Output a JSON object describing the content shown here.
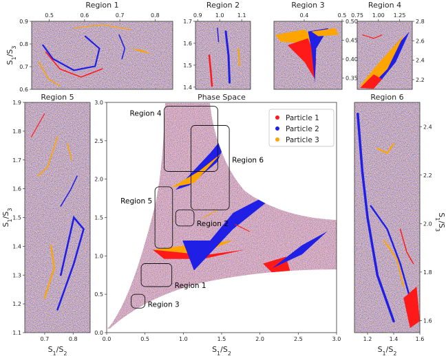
{
  "colors": {
    "particle1": "#ff1a1a",
    "particle2": "#1f1fe6",
    "particle3": "#ffa500",
    "noise_mix": "#b05a9a"
  },
  "chart_data": [
    {
      "id": "region1",
      "type": "scatter",
      "title": "Region 1",
      "xticks_top": [
        "0.5",
        "0.6",
        "0.7",
        "0.8"
      ],
      "xticks_values": [
        0.5,
        0.6,
        0.7,
        0.8
      ],
      "xlim": [
        0.45,
        0.85
      ],
      "ylim": [
        0.6,
        0.9
      ],
      "yticks": [
        "0.6",
        "0.7",
        "0.8",
        "0.9"
      ],
      "yticks_values": [
        0.6,
        0.7,
        0.8,
        0.9
      ],
      "ylabel": "S1/S3"
    },
    {
      "id": "region2",
      "type": "scatter",
      "title": "Region 2",
      "xticks_top": [
        "0.9",
        "1.0",
        "1.1"
      ],
      "xticks_values": [
        0.9,
        1.0,
        1.1
      ],
      "xlim": [
        0.89,
        1.14
      ],
      "ylim": [
        1.39,
        1.7
      ],
      "yticks": [
        "1.4",
        "1.5",
        "1.6",
        "1.7"
      ],
      "yticks_values": [
        1.4,
        1.5,
        1.6,
        1.7
      ]
    },
    {
      "id": "region3",
      "type": "scatter",
      "title": "Region 3",
      "xticks_top": [
        "0.4",
        "0.5"
      ],
      "xticks_values": [
        0.4,
        0.5
      ],
      "xlim": [
        0.32,
        0.5
      ],
      "ylim": [
        0.32,
        0.5
      ],
      "yticks_right": [
        "0.35",
        "0.40",
        "0.45",
        "0.50"
      ],
      "yticks_values": [
        0.35,
        0.4,
        0.45,
        0.5
      ]
    },
    {
      "id": "region4",
      "type": "scatter",
      "title": "Region 4",
      "xticks_top": [
        "0.75",
        "1.00",
        "1.25"
      ],
      "xticks_values": [
        0.75,
        1.0,
        1.25
      ],
      "xlim": [
        0.75,
        1.4
      ],
      "ylim": [
        2.1,
        2.8
      ],
      "yticks_right": [
        "2.2",
        "2.4",
        "2.6",
        "2.8"
      ],
      "yticks_values": [
        2.2,
        2.4,
        2.6,
        2.8
      ]
    },
    {
      "id": "region5",
      "type": "scatter",
      "title": "Region 5",
      "xlim": [
        0.63,
        0.86
      ],
      "ylim": [
        1.1,
        1.9
      ],
      "xticks": [
        "0.7",
        "0.8"
      ],
      "xticks_values": [
        0.7,
        0.8
      ],
      "yticks": [
        "1.1",
        "1.2",
        "1.3",
        "1.4",
        "1.5",
        "1.6",
        "1.7",
        "1.8",
        "1.9"
      ],
      "yticks_values": [
        1.1,
        1.2,
        1.3,
        1.4,
        1.5,
        1.6,
        1.7,
        1.8,
        1.9
      ],
      "xlabel": "S1/S2",
      "ylabel": "S1/S3"
    },
    {
      "id": "phase",
      "type": "scatter",
      "title": "Phase Space",
      "xlim": [
        0.0,
        3.0
      ],
      "ylim": [
        0.0,
        3.0
      ],
      "xticks": [
        "0.0",
        "0.5",
        "1.0",
        "1.5",
        "2.0",
        "2.5",
        "3.0"
      ],
      "xticks_values": [
        0.0,
        0.5,
        1.0,
        1.5,
        2.0,
        2.5,
        3.0
      ],
      "yticks": [
        "0.0",
        "0.5",
        "1.0",
        "1.5",
        "2.0",
        "2.5",
        "3.0"
      ],
      "yticks_values": [
        0.0,
        0.5,
        1.0,
        1.5,
        2.0,
        2.5,
        3.0
      ],
      "xlabel": "S1/S2",
      "legend": {
        "placement": "top-right",
        "entries": [
          {
            "name": "Particle 1",
            "color": "#ff1a1a"
          },
          {
            "name": "Particle 2",
            "color": "#1f1fe6"
          },
          {
            "name": "Particle 3",
            "color": "#ffa500"
          }
        ]
      },
      "regions": [
        {
          "label": "Region 1",
          "x0": 0.45,
          "x1": 0.85,
          "y0": 0.6,
          "y1": 0.9
        },
        {
          "label": "Region 2",
          "x0": 0.9,
          "x1": 1.14,
          "y0": 1.39,
          "y1": 1.6
        },
        {
          "label": "Region 3",
          "x0": 0.32,
          "x1": 0.5,
          "y0": 0.32,
          "y1": 0.5
        },
        {
          "label": "Region 4",
          "x0": 0.75,
          "x1": 1.45,
          "y0": 2.1,
          "y1": 2.95
        },
        {
          "label": "Region 5",
          "x0": 0.63,
          "x1": 0.86,
          "y0": 1.1,
          "y1": 1.9
        },
        {
          "label": "Region 6",
          "x0": 1.1,
          "x1": 1.6,
          "y0": 1.6,
          "y1": 2.7
        }
      ]
    },
    {
      "id": "region6",
      "type": "scatter",
      "title": "Region 6",
      "xlim": [
        1.1,
        1.6
      ],
      "ylim": [
        1.55,
        2.5
      ],
      "xticks": [
        "1.2",
        "1.4",
        "1.6"
      ],
      "xticks_values": [
        1.2,
        1.4,
        1.6
      ],
      "yticks_right": [
        "1.6",
        "1.8",
        "2.0",
        "2.2",
        "2.4"
      ],
      "yticks_values": [
        1.6,
        1.8,
        2.0,
        2.2,
        2.4
      ],
      "xlabel": "S1/S2",
      "ylabel": "S1/S3"
    }
  ]
}
